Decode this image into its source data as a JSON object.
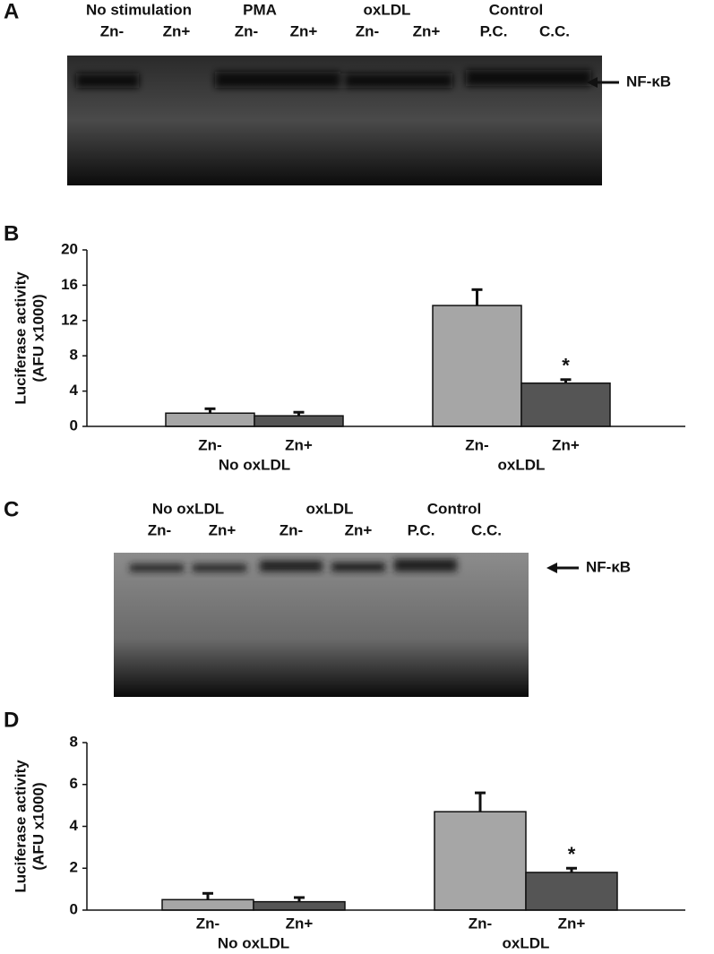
{
  "gel_a": {
    "panel": "A",
    "groups": [
      "No stimulation",
      "PMA",
      "oxLDL",
      "Control"
    ],
    "lanes": [
      "Zn-",
      "Zn+",
      "Zn-",
      "Zn+",
      "Zn-",
      "Zn+",
      "P.C.",
      "C.C."
    ],
    "marker": "NF-κB"
  },
  "gel_c": {
    "panel": "C",
    "groups": [
      "No oxLDL",
      "oxLDL",
      "Control"
    ],
    "lanes": [
      "Zn-",
      "Zn+",
      "Zn-",
      "Zn+",
      "P.C.",
      "C.C."
    ],
    "marker": "NF-κB"
  },
  "chart_data": [
    {
      "type": "bar",
      "panel": "B",
      "ylabel": [
        "Luciferase activity",
        "(AFU x1000)"
      ],
      "categories": [
        "Zn-",
        "Zn+",
        "Zn-",
        "Zn+"
      ],
      "groups": [
        "No oxLDL",
        "oxLDL"
      ],
      "values": [
        1.5,
        1.2,
        13.7,
        4.9
      ],
      "errors": [
        0.5,
        0.4,
        1.8,
        0.4
      ],
      "colors": [
        "#a6a6a6",
        "#555555",
        "#a6a6a6",
        "#555555"
      ],
      "annotation": "*",
      "ylim": [
        0,
        20
      ],
      "yticks": [
        0,
        4,
        8,
        12,
        16,
        20
      ]
    },
    {
      "type": "bar",
      "panel": "D",
      "ylabel": [
        "Luciferase activity",
        "(AFU x1000)"
      ],
      "categories": [
        "Zn-",
        "Zn+",
        "Zn-",
        "Zn+"
      ],
      "groups": [
        "No oxLDL",
        "oxLDL"
      ],
      "values": [
        0.5,
        0.4,
        4.7,
        1.8
      ],
      "errors": [
        0.3,
        0.2,
        0.9,
        0.2
      ],
      "colors": [
        "#a6a6a6",
        "#555555",
        "#a6a6a6",
        "#555555"
      ],
      "annotation": "*",
      "ylim": [
        0,
        8
      ],
      "yticks": [
        0,
        2,
        4,
        6,
        8
      ]
    }
  ]
}
